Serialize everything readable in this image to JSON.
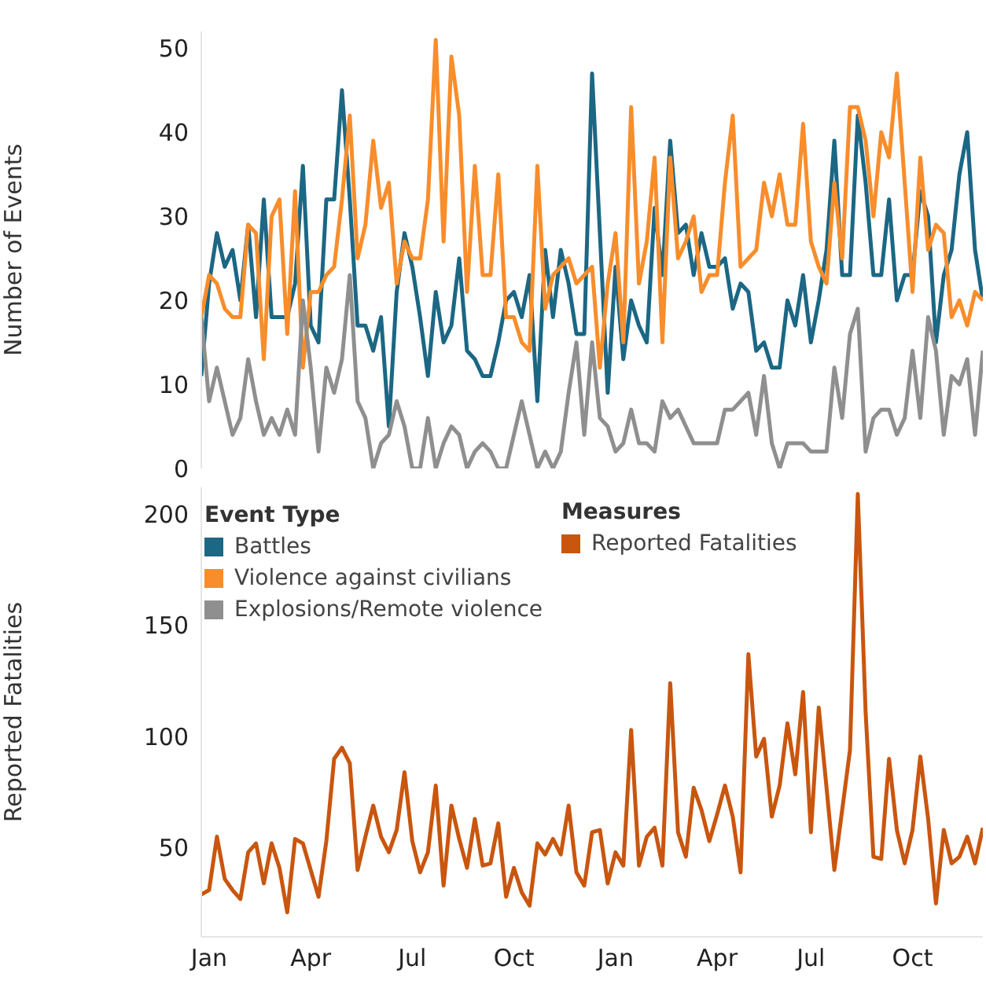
{
  "chart_data": [
    {
      "type": "line",
      "ylabel": "Number of Events",
      "legend": "bottom left",
      "legend_title": "Event Type",
      "tick_labels": "y",
      "categories": [
        null,
        null,
        null,
        null,
        null,
        null,
        null,
        null,
        null,
        null,
        null,
        null,
        null,
        null,
        null,
        null,
        null,
        null,
        null,
        null,
        null,
        null,
        null,
        null,
        null,
        null,
        null,
        null,
        null,
        null,
        null,
        null,
        null,
        null,
        null,
        null,
        null,
        null,
        null,
        null,
        null,
        null,
        null,
        null,
        null,
        null,
        null,
        null,
        null,
        null,
        null,
        null,
        null,
        null,
        null,
        null,
        null,
        null,
        null,
        null,
        null,
        null,
        null,
        null,
        null,
        null,
        null,
        null,
        null,
        null,
        null,
        null,
        null,
        null,
        null,
        null,
        null,
        null,
        null,
        null,
        null,
        null,
        null,
        null,
        null,
        null,
        null,
        null,
        null,
        null,
        null,
        null,
        null,
        null,
        null,
        null,
        null,
        null,
        null,
        null,
        null
      ],
      "ylim": [
        0,
        52
      ],
      "yticks": [
        0,
        10,
        20,
        30,
        40,
        50
      ],
      "series": [
        {
          "name": "Battles",
          "color": "#1b6784",
          "values": [
            11,
            22,
            28,
            24,
            26,
            20,
            29,
            18,
            32,
            18,
            18,
            18,
            22,
            36,
            17,
            15,
            32,
            32,
            45,
            32,
            17,
            17,
            14,
            18,
            5,
            21,
            28,
            24,
            18,
            11,
            21,
            15,
            17,
            25,
            14,
            13,
            11,
            11,
            15,
            20,
            21,
            18,
            23,
            8,
            26,
            18,
            26,
            22,
            16,
            16,
            47,
            28,
            9,
            24,
            13,
            20,
            17,
            15,
            31,
            23,
            39,
            28,
            29,
            23,
            28,
            24,
            24,
            25,
            19,
            22,
            21,
            14,
            15,
            12,
            12,
            20,
            17,
            23,
            15,
            20,
            26,
            39,
            23,
            23,
            42,
            34,
            23,
            23,
            32,
            20,
            23,
            23,
            33,
            30,
            15,
            23,
            26,
            35,
            40,
            26,
            20
          ]
        },
        {
          "name": "Violence against civilians",
          "color": "#f88d2b",
          "values": [
            18,
            23,
            22,
            19,
            18,
            18,
            29,
            28,
            13,
            30,
            32,
            16,
            33,
            12,
            21,
            21,
            23,
            24,
            32,
            42,
            25,
            29,
            39,
            31,
            34,
            22,
            27,
            25,
            25,
            32,
            51,
            27,
            49,
            42,
            21,
            36,
            23,
            23,
            35,
            18,
            18,
            15,
            14,
            36,
            19,
            23,
            24,
            25,
            22,
            23,
            24,
            12,
            22,
            28,
            15,
            43,
            22,
            27,
            37,
            15,
            37,
            25,
            27,
            30,
            21,
            23,
            23,
            34,
            42,
            24,
            25,
            26,
            34,
            30,
            35,
            29,
            29,
            41,
            27,
            24,
            22,
            34,
            25,
            43,
            43,
            39,
            30,
            40,
            37,
            47,
            34,
            21,
            37,
            26,
            29,
            28,
            18,
            20,
            17,
            21,
            20
          ]
        },
        {
          "name": "Explosions/Remote violence",
          "color": "#8f8f8f",
          "values": [
            18,
            8,
            12,
            8,
            4,
            6,
            13,
            8,
            4,
            6,
            4,
            7,
            4,
            20,
            12,
            2,
            12,
            9,
            13,
            23,
            8,
            6,
            0,
            3,
            4,
            8,
            5,
            0,
            0,
            6,
            0,
            3,
            5,
            4,
            0,
            2,
            3,
            2,
            0,
            0,
            4,
            8,
            4,
            0,
            2,
            0,
            2,
            9,
            15,
            4,
            15,
            6,
            5,
            2,
            3,
            7,
            3,
            3,
            2,
            8,
            6,
            7,
            5,
            3,
            3,
            3,
            3,
            7,
            7,
            8,
            9,
            4,
            11,
            3,
            0,
            3,
            3,
            3,
            2,
            2,
            2,
            12,
            6,
            16,
            19,
            2,
            6,
            7,
            7,
            4,
            6,
            14,
            6,
            18,
            14,
            4,
            11,
            10,
            13,
            4,
            14
          ]
        }
      ]
    },
    {
      "type": "line",
      "ylabel": "Reported Fatalities",
      "legend": "top",
      "legend_title": "Measures",
      "categories": [
        null,
        "Jan",
        null,
        null,
        null,
        null,
        null,
        null,
        null,
        null,
        null,
        null,
        null,
        null,
        "Apr",
        null,
        null,
        null,
        null,
        null,
        null,
        null,
        null,
        null,
        null,
        null,
        null,
        "Jul",
        null,
        null,
        null,
        null,
        null,
        null,
        null,
        null,
        null,
        null,
        null,
        null,
        "Oct",
        null,
        null,
        null,
        null,
        null,
        null,
        null,
        null,
        null,
        null,
        null,
        null,
        "Jan",
        null,
        null,
        null,
        null,
        null,
        null,
        null,
        null,
        null,
        null,
        null,
        null,
        "Apr",
        null,
        null,
        null,
        null,
        null,
        null,
        null,
        null,
        null,
        null,
        null,
        "Jul",
        null,
        null,
        null,
        null,
        null,
        null,
        null,
        null,
        null,
        null,
        null,
        null,
        "Oct",
        null,
        null,
        null,
        null,
        null,
        null,
        null,
        null,
        null
      ],
      "ylim": [
        10,
        212
      ],
      "yticks": [
        50,
        100,
        150,
        200
      ],
      "series": [
        {
          "name": "Reported Fatalities",
          "color": "#c9560f",
          "values": [
            29,
            31,
            55,
            36,
            31,
            27,
            48,
            52,
            34,
            52,
            41,
            21,
            54,
            52,
            40,
            28,
            53,
            90,
            95,
            88,
            40,
            55,
            69,
            55,
            48,
            58,
            84,
            53,
            39,
            48,
            78,
            33,
            69,
            54,
            41,
            63,
            42,
            43,
            61,
            28,
            41,
            30,
            24,
            52,
            47,
            54,
            47,
            69,
            39,
            33,
            57,
            58,
            34,
            48,
            42,
            103,
            42,
            55,
            59,
            42,
            124,
            57,
            46,
            77,
            67,
            53,
            65,
            78,
            64,
            39,
            137,
            91,
            99,
            64,
            78,
            106,
            83,
            120,
            57,
            113,
            77,
            40,
            67,
            94,
            209,
            111,
            46,
            45,
            90,
            58,
            43,
            58,
            91,
            63,
            25,
            58,
            43,
            46,
            55,
            43,
            59
          ]
        }
      ]
    }
  ]
}
